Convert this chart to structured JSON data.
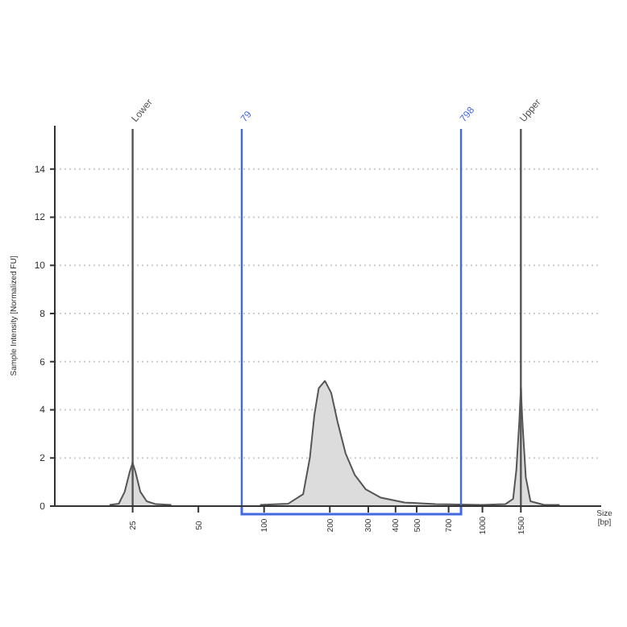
{
  "chart_data": {
    "type": "area",
    "xlabel": "Size [bp]",
    "ylabel": "Sample Intensity [Normalized FU]",
    "log": "x",
    "xlim": [
      11,
      3500
    ],
    "ylim": [
      0,
      15.8
    ],
    "xticks": [
      25,
      50,
      100,
      200,
      300,
      400,
      500,
      700,
      1000,
      1500
    ],
    "yticks": [
      0,
      2,
      4,
      6,
      8,
      10,
      12,
      14
    ],
    "grid": "y",
    "series": [
      {
        "color": "#555555",
        "x": [
          19.6,
          21.6,
          23.0,
          24.2,
          25,
          25.8,
          27.1,
          29.0,
          32.0,
          37.6,
          38,
          95.8,
          129,
          151,
          162,
          170,
          178,
          190,
          203,
          217,
          236,
          260,
          292,
          343,
          439,
          610,
          995,
          1273,
          1382,
          1430,
          1475,
          1500,
          1525,
          1580,
          1660,
          1918,
          2258
        ],
        "values": [
          0.05,
          0.1,
          0.6,
          1.4,
          1.8,
          1.4,
          0.6,
          0.2,
          0.08,
          0.05,
          null,
          0.05,
          0.1,
          0.5,
          2.0,
          3.8,
          4.9,
          5.2,
          4.7,
          3.5,
          2.2,
          1.3,
          0.7,
          0.35,
          0.15,
          0.08,
          0.05,
          0.08,
          0.3,
          1.5,
          3.5,
          4.9,
          3.5,
          1.2,
          0.2,
          0.05,
          0.05
        ]
      }
    ],
    "ref_lines": [
      {
        "axis": "x",
        "value": 25,
        "label": "Lower",
        "color": "#555555"
      },
      {
        "axis": "x",
        "value": 79,
        "label": "79",
        "color": "#4169e1"
      },
      {
        "axis": "x",
        "value": 798,
        "label": "798",
        "color": "#4169e1"
      },
      {
        "axis": "x",
        "value": 1500,
        "label": "Upper",
        "color": "#555555"
      }
    ]
  }
}
